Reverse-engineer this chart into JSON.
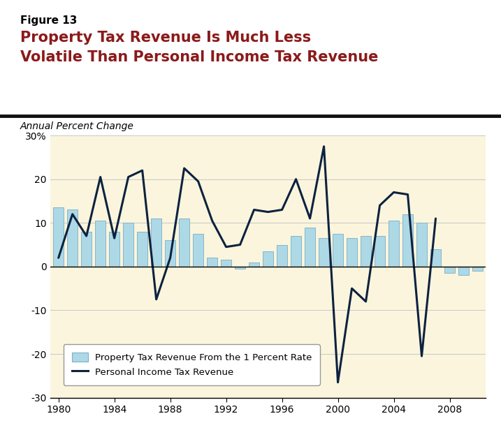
{
  "figure_label": "Figure 13",
  "title_line1": "Property Tax Revenue Is Much Less",
  "title_line2": "Volatile Than Personal Income Tax Revenue",
  "subtitle": "Annual Percent Change",
  "background_color": "#FAF5DC",
  "header_background": "#FFFFFF",
  "bar_color": "#ADD8E6",
  "bar_edge_color": "#7BAFC8",
  "line_color": "#0D2240",
  "title_color": "#8B1A1A",
  "figure_label_color": "#000000",
  "years": [
    1980,
    1981,
    1982,
    1983,
    1984,
    1985,
    1986,
    1987,
    1988,
    1989,
    1990,
    1991,
    1992,
    1993,
    1994,
    1995,
    1996,
    1997,
    1998,
    1999,
    2000,
    2001,
    2002,
    2003,
    2004,
    2005,
    2006,
    2007,
    2008,
    2009,
    2010
  ],
  "property_tax": [
    13.5,
    13.0,
    8.0,
    10.5,
    8.0,
    10.0,
    8.0,
    11.0,
    6.0,
    11.0,
    7.5,
    2.0,
    1.5,
    -0.5,
    1.0,
    3.5,
    5.0,
    7.0,
    9.0,
    6.5,
    7.5,
    6.5,
    7.0,
    7.0,
    10.5,
    12.0,
    10.0,
    4.0,
    -1.5,
    -2.0,
    -1.0
  ],
  "personal_income_tax": [
    2.0,
    12.0,
    7.0,
    20.5,
    6.5,
    20.5,
    22.0,
    -7.5,
    2.0,
    22.5,
    19.5,
    10.5,
    4.5,
    5.0,
    13.0,
    12.5,
    13.0,
    20.0,
    11.0,
    27.5,
    -26.5,
    -5.0,
    -8.0,
    14.0,
    17.0,
    16.5,
    -20.5,
    11.0,
    null,
    null,
    null
  ],
  "ylim": [
    -30,
    30
  ],
  "yticks": [
    -30,
    -20,
    -10,
    0,
    10,
    20,
    30
  ],
  "ytick_labels": [
    "-30",
    "-20",
    "-10",
    "0",
    "10",
    "20",
    "30%"
  ],
  "xlim": [
    1979.4,
    2010.6
  ],
  "xticks": [
    1980,
    1984,
    1988,
    1992,
    1996,
    2000,
    2004,
    2008
  ],
  "legend_labels": [
    "Property Tax Revenue From the 1 Percent Rate",
    "Personal Income Tax Revenue"
  ],
  "separator_color": "#111111",
  "grid_color": "#C8C8C8"
}
